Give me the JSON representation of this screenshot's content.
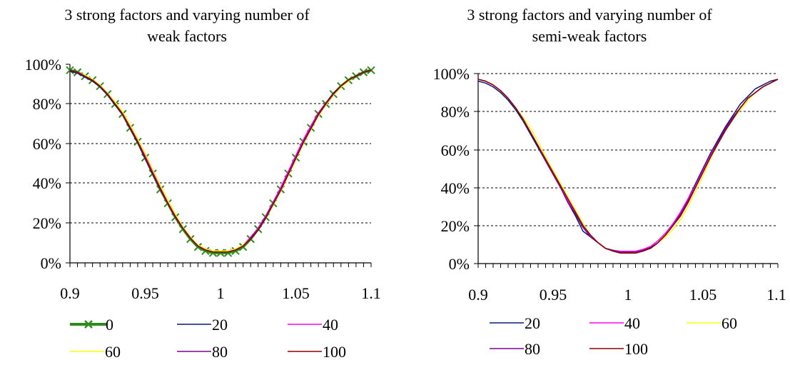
{
  "chart_data": [
    {
      "type": "line",
      "title": [
        "3 strong factors and varying number of",
        "weak factors"
      ],
      "xlabel": "",
      "ylabel": "",
      "xlim": [
        0.9,
        1.1
      ],
      "ylim": [
        0,
        100
      ],
      "x_ticks": [
        "0.9",
        "0.95",
        "1",
        "1.05",
        "1.1"
      ],
      "y_ticks": [
        "0%",
        "20%",
        "40%",
        "60%",
        "80%",
        "100%"
      ],
      "grid": "horizontal dashed",
      "legend_position": "bottom",
      "x": [
        0.9,
        0.905,
        0.91,
        0.915,
        0.92,
        0.925,
        0.93,
        0.935,
        0.94,
        0.945,
        0.95,
        0.955,
        0.96,
        0.965,
        0.97,
        0.975,
        0.98,
        0.985,
        0.99,
        0.995,
        1.0,
        1.005,
        1.01,
        1.015,
        1.02,
        1.025,
        1.03,
        1.035,
        1.04,
        1.045,
        1.05,
        1.055,
        1.06,
        1.065,
        1.07,
        1.075,
        1.08,
        1.085,
        1.09,
        1.095,
        1.1
      ],
      "series": [
        {
          "name": "0",
          "color": "#2e8b1e",
          "marker": "x",
          "values": [
            97,
            96,
            94,
            92,
            89,
            85,
            80,
            75,
            68,
            61,
            53,
            45,
            37,
            30,
            23,
            17,
            12,
            8,
            6,
            5,
            5,
            5,
            6,
            8,
            12,
            17,
            23,
            30,
            37,
            45,
            53,
            61,
            68,
            75,
            80,
            85,
            89,
            92,
            94,
            96,
            97
          ]
        },
        {
          "name": "20",
          "color": "#0a1a7a",
          "values": [
            96.5,
            95.5,
            93.5,
            91.5,
            88.5,
            84.5,
            79.5,
            74.5,
            67.5,
            60.5,
            52.5,
            44.5,
            37,
            30,
            23,
            17.5,
            12.5,
            8.5,
            6.5,
            5.5,
            5.5,
            5.5,
            6.5,
            8.5,
            12.5,
            17,
            23,
            30,
            37.5,
            45.5,
            53.5,
            61.5,
            68.5,
            75.5,
            80.5,
            85.5,
            89,
            92,
            94,
            96,
            97
          ]
        },
        {
          "name": "40",
          "color": "#ff00ff",
          "values": [
            97,
            96,
            94,
            92,
            89,
            85,
            80,
            75,
            68.5,
            61.5,
            54,
            46,
            38,
            31,
            24,
            18,
            13,
            9,
            7,
            6,
            6,
            6,
            7,
            9,
            13,
            17.5,
            23.5,
            30.5,
            38,
            46,
            54,
            62,
            69,
            75.5,
            80.5,
            85,
            89,
            92,
            94,
            96,
            97
          ]
        },
        {
          "name": "60",
          "color": "#ffff00",
          "values": [
            97,
            96,
            94.5,
            92.5,
            89.5,
            85.5,
            81,
            76,
            69.5,
            62.5,
            55,
            47,
            39,
            31.5,
            24.5,
            18,
            13,
            9,
            7,
            6,
            6,
            6,
            7,
            9,
            12.5,
            17,
            22.5,
            29,
            36,
            44,
            52,
            60,
            67,
            74,
            79.5,
            84.5,
            88.5,
            91.5,
            94,
            96,
            97
          ]
        },
        {
          "name": "80",
          "color": "#7b0099",
          "values": [
            97,
            96,
            94,
            92,
            89,
            85,
            80,
            74.5,
            68,
            61,
            53,
            45,
            37,
            30,
            23,
            17.5,
            12.5,
            8.5,
            6.5,
            5.5,
            5.5,
            5.5,
            6.5,
            8.5,
            12.5,
            17,
            23,
            30,
            37,
            45,
            53,
            61,
            68,
            75,
            80.5,
            85,
            89,
            92,
            94,
            96,
            97
          ]
        },
        {
          "name": "100",
          "color": "#8b0000",
          "values": [
            97,
            96,
            94,
            92,
            89,
            85,
            80,
            75,
            68,
            61,
            53,
            45,
            37.5,
            30,
            23.5,
            17.5,
            12.5,
            8.5,
            6.5,
            5.5,
            5.5,
            5.5,
            6.5,
            8.5,
            12,
            16.5,
            22.5,
            29.5,
            36.5,
            44.5,
            52.5,
            60.5,
            67.5,
            74.5,
            80,
            85,
            89,
            92,
            94,
            96,
            97
          ]
        }
      ]
    },
    {
      "type": "line",
      "title": [
        "3 strong factors and varying number of",
        "semi-weak factors"
      ],
      "xlabel": "",
      "ylabel": "",
      "xlim": [
        0.9,
        1.1
      ],
      "ylim": [
        0,
        100
      ],
      "x_ticks": [
        "0.9",
        "0.95",
        "1",
        "1.05",
        "1.1"
      ],
      "y_ticks": [
        "0%",
        "20%",
        "40%",
        "60%",
        "80%",
        "100%"
      ],
      "grid": "horizontal dashed",
      "legend_position": "bottom",
      "x": [
        0.9,
        0.905,
        0.91,
        0.915,
        0.92,
        0.925,
        0.93,
        0.935,
        0.94,
        0.945,
        0.95,
        0.955,
        0.96,
        0.965,
        0.97,
        0.975,
        0.98,
        0.985,
        0.99,
        0.995,
        1.0,
        1.005,
        1.01,
        1.015,
        1.02,
        1.025,
        1.03,
        1.035,
        1.04,
        1.045,
        1.05,
        1.055,
        1.06,
        1.065,
        1.07,
        1.075,
        1.08,
        1.085,
        1.09,
        1.095,
        1.1
      ],
      "series": [
        {
          "name": "20",
          "color": "#0a1a7a",
          "values": [
            96,
            95,
            93,
            90,
            86,
            81,
            75,
            68,
            61,
            54,
            47,
            40,
            32,
            25,
            17,
            14,
            11,
            8,
            7,
            6,
            6,
            6,
            7,
            8,
            11,
            15,
            20,
            27,
            34,
            42,
            50,
            58,
            65,
            72,
            78,
            84,
            88,
            92,
            94,
            96,
            97
          ]
        },
        {
          "name": "40",
          "color": "#ff00ff",
          "values": [
            97,
            96,
            94,
            91,
            87,
            82,
            76,
            69,
            62,
            54,
            47,
            40,
            33,
            26,
            20,
            15,
            11,
            8,
            7,
            6.5,
            6.5,
            6.5,
            7.5,
            9,
            12,
            16,
            21,
            27,
            34,
            41,
            49,
            57,
            64,
            71,
            77,
            82,
            87,
            90,
            93,
            95,
            97
          ]
        },
        {
          "name": "60",
          "color": "#ffff00",
          "values": [
            97,
            96,
            94,
            91,
            87,
            82,
            77,
            71,
            64,
            56,
            49,
            42,
            35,
            28,
            21,
            15,
            11,
            8,
            7,
            6,
            6,
            6,
            7,
            8.5,
            11,
            14,
            18,
            23,
            30,
            38,
            46,
            55,
            63,
            70,
            76,
            81,
            86,
            90,
            93,
            95,
            97
          ]
        },
        {
          "name": "80",
          "color": "#7b0099",
          "values": [
            97,
            96,
            94,
            91,
            87,
            82,
            76,
            69,
            62,
            54,
            47,
            40,
            32,
            26,
            19,
            14,
            11,
            8,
            7,
            6,
            6,
            6,
            7,
            8.5,
            11,
            15,
            20,
            26,
            33,
            40,
            48,
            56,
            64,
            71,
            77,
            82,
            87,
            90,
            93,
            95,
            97
          ]
        },
        {
          "name": "100",
          "color": "#8b0000",
          "values": [
            97,
            96,
            94,
            91,
            87,
            82,
            76,
            69,
            62,
            55,
            48,
            41,
            34,
            27,
            20,
            15,
            11,
            8,
            6.5,
            5.5,
            5.5,
            5.5,
            6.5,
            8,
            11,
            15,
            20,
            25,
            32,
            40,
            48,
            56,
            63,
            70,
            76,
            82,
            87,
            90,
            93,
            95,
            97
          ]
        }
      ]
    }
  ]
}
